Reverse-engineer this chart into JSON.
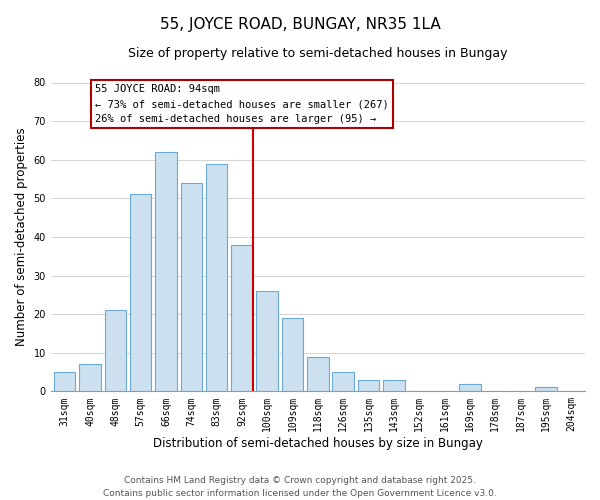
{
  "title": "55, JOYCE ROAD, BUNGAY, NR35 1LA",
  "subtitle": "Size of property relative to semi-detached houses in Bungay",
  "xlabel": "Distribution of semi-detached houses by size in Bungay",
  "ylabel": "Number of semi-detached properties",
  "categories": [
    "31sqm",
    "40sqm",
    "48sqm",
    "57sqm",
    "66sqm",
    "74sqm",
    "83sqm",
    "92sqm",
    "100sqm",
    "109sqm",
    "118sqm",
    "126sqm",
    "135sqm",
    "143sqm",
    "152sqm",
    "161sqm",
    "169sqm",
    "178sqm",
    "187sqm",
    "195sqm",
    "204sqm"
  ],
  "values": [
    5,
    7,
    21,
    51,
    62,
    54,
    59,
    38,
    26,
    19,
    9,
    5,
    3,
    3,
    0,
    0,
    2,
    0,
    0,
    1,
    0
  ],
  "bar_color": "#cce0f0",
  "bar_edge_color": "#6aaad4",
  "vline_index": 7,
  "vline_color": "#cc0000",
  "annotation_title": "55 JOYCE ROAD: 94sqm",
  "annotation_line1": "← 73% of semi-detached houses are smaller (267)",
  "annotation_line2": "26% of semi-detached houses are larger (95) →",
  "annotation_box_color": "#ffffff",
  "annotation_box_edge": "#aa0000",
  "ylim": [
    0,
    80
  ],
  "yticks": [
    0,
    10,
    20,
    30,
    40,
    50,
    60,
    70,
    80
  ],
  "footer_line1": "Contains HM Land Registry data © Crown copyright and database right 2025.",
  "footer_line2": "Contains public sector information licensed under the Open Government Licence v3.0.",
  "bg_color": "#ffffff",
  "grid_color": "#cccccc",
  "title_fontsize": 11,
  "subtitle_fontsize": 9,
  "axis_label_fontsize": 8.5,
  "tick_fontsize": 7,
  "annotation_fontsize": 7.5,
  "footer_fontsize": 6.5
}
